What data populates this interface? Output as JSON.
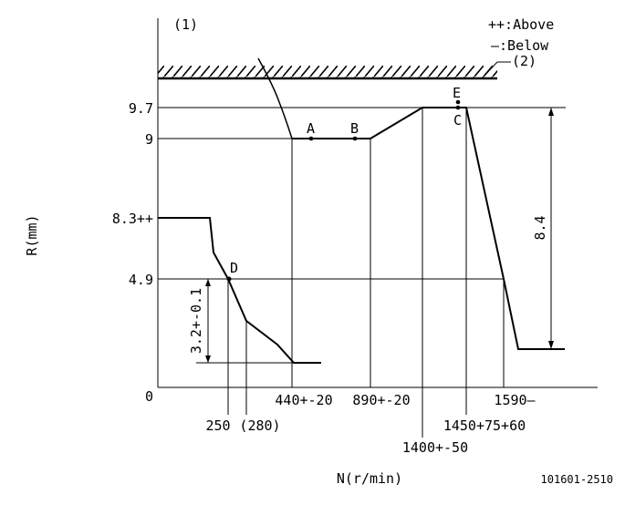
{
  "header": {
    "diagram_number": "(1)",
    "legend_above": "++:Above",
    "legend_below": "—:Below",
    "stopper_label": "(2)"
  },
  "axes": {
    "y_label": "R(mm)",
    "x_label": "N(r/min)",
    "y_ticks": [
      "9.7",
      "9",
      "8.3++",
      "4.9",
      "0"
    ],
    "x_ticks": [
      "250",
      "(280)",
      "440+-20",
      "890+-20",
      "1400+-50",
      "1450+75+60",
      "1590—"
    ]
  },
  "points": [
    "A",
    "B",
    "C",
    "D",
    "E"
  ],
  "dimensions": {
    "vertical_left": "3.2+-0.1",
    "vertical_right": "8.4"
  },
  "footer": {
    "code": "101601-2510"
  }
}
